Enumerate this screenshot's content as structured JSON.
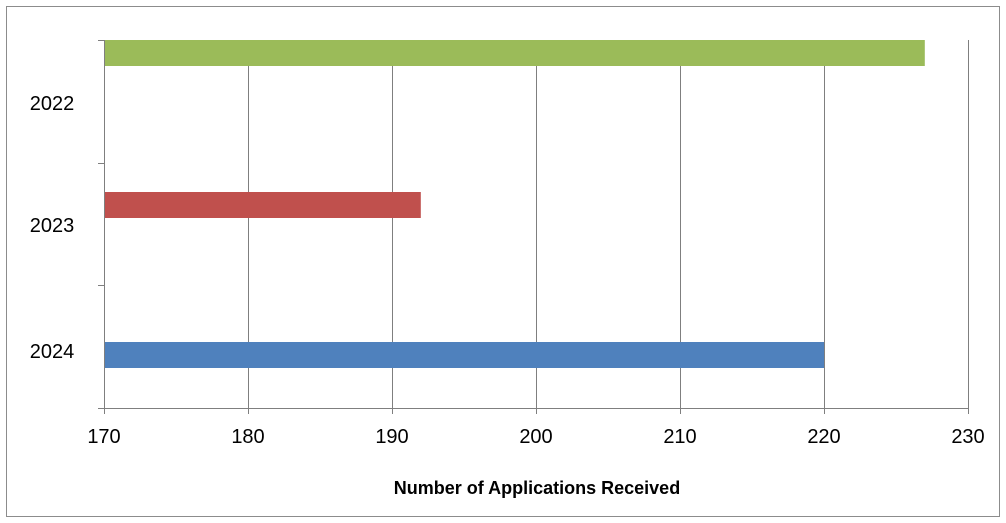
{
  "chart_data": {
    "type": "bar",
    "orientation": "horizontal",
    "categories": [
      "2022",
      "2023",
      "2024"
    ],
    "values": [
      227,
      192,
      220
    ],
    "colors": [
      "#9BBB59",
      "#C0504D",
      "#4F81BD"
    ],
    "xlabel": "Number of Applications Received",
    "ylabel": "",
    "xlim": [
      170,
      230
    ],
    "x_ticks": [
      170,
      180,
      190,
      200,
      210,
      220,
      230
    ],
    "grid": "vertical"
  }
}
